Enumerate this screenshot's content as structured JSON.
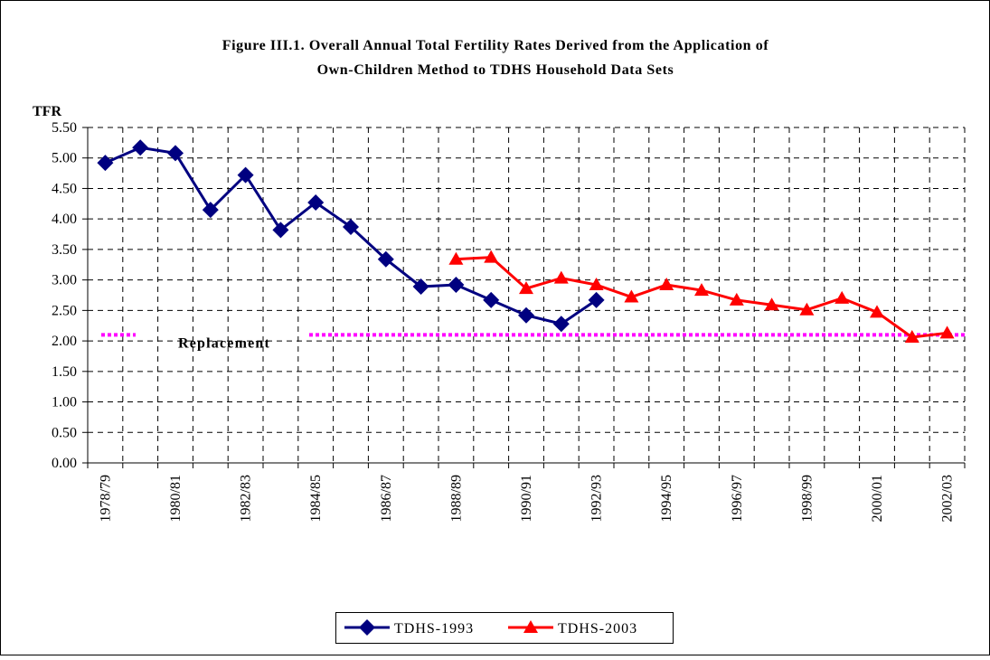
{
  "chart_data": {
    "type": "line",
    "title_lines": [
      "Figure III.1. Overall Annual Total Fertility Rates Derived from the Application of",
      "Own-Children Method to TDHS Household Data Sets"
    ],
    "y_label": "TFR",
    "categories": [
      "1978/79",
      null,
      "1980/81",
      null,
      "1982/83",
      null,
      "1984/85",
      null,
      "1986/87",
      null,
      "1988/89",
      null,
      "1990/91",
      null,
      "1992/93",
      null,
      "1994/95",
      null,
      "1996/97",
      null,
      "1998/99",
      null,
      "2000/01",
      null,
      "2002/03"
    ],
    "series": [
      {
        "name": "TDHS-1993",
        "color": "#000080",
        "marker": "diamond",
        "values": [
          4.92,
          5.17,
          5.08,
          4.15,
          4.72,
          3.82,
          4.27,
          3.87,
          3.34,
          2.89,
          2.92,
          2.67,
          2.42,
          2.28,
          2.67,
          null,
          null,
          null,
          null,
          null,
          null,
          null,
          null,
          null,
          null
        ]
      },
      {
        "name": "TDHS-2003",
        "color": "#ff0000",
        "marker": "triangle",
        "values": [
          null,
          null,
          null,
          null,
          null,
          null,
          null,
          null,
          null,
          null,
          3.34,
          3.37,
          2.86,
          3.03,
          2.92,
          2.72,
          2.92,
          2.83,
          2.67,
          2.59,
          2.51,
          2.7,
          2.47,
          2.06,
          2.13
        ]
      }
    ],
    "replacement": {
      "label": "Replacement",
      "value": 2.1,
      "color": "#ff00ff"
    },
    "ylim": [
      0,
      5.5
    ],
    "yticks": [
      {
        "value": 0,
        "label": "0.00"
      },
      {
        "value": 0.5,
        "label": "0.50"
      },
      {
        "value": 1,
        "label": "1.00"
      },
      {
        "value": 1.5,
        "label": "1.50"
      },
      {
        "value": 2,
        "label": "2.00"
      },
      {
        "value": 2.5,
        "label": "2.50"
      },
      {
        "value": 3,
        "label": "3.00"
      },
      {
        "value": 3.5,
        "label": "3.50"
      },
      {
        "value": 4,
        "label": "4.00"
      },
      {
        "value": 4.5,
        "label": "4.50"
      },
      {
        "value": 5,
        "label": "5.00"
      },
      {
        "value": 5.5,
        "label": "5.50"
      }
    ],
    "grid": true
  }
}
